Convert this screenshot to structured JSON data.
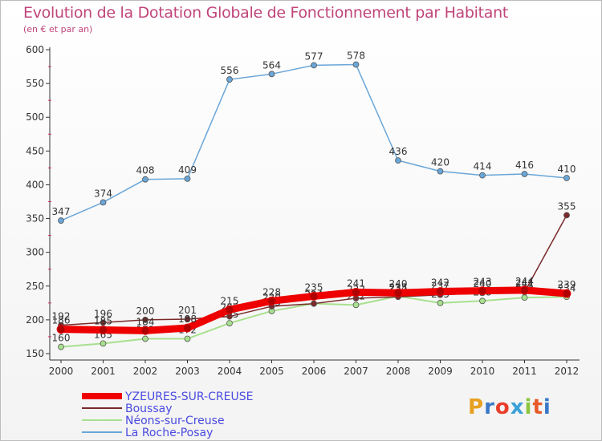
{
  "title": "Evolution de la Dotation Globale de Fonctionnement par Habitant",
  "subtitle": "(en € et par an)",
  "logo": "Proxiti",
  "chart_data": {
    "type": "line",
    "x": [
      "2000",
      "2001",
      "2002",
      "2003",
      "2004",
      "2005",
      "2006",
      "2007",
      "2008",
      "2009",
      "2010",
      "2011",
      "2012"
    ],
    "ylim": [
      150,
      600
    ],
    "yticks": [
      150,
      200,
      250,
      300,
      350,
      400,
      450,
      500,
      550,
      600
    ],
    "grid": false,
    "legend": "bottom-left",
    "series": [
      {
        "name": "La Roche-Posay",
        "color": "#6aa6d8",
        "width": 1.5,
        "values": [
          347,
          374,
          408,
          409,
          556,
          564,
          577,
          578,
          436,
          420,
          414,
          416,
          410
        ]
      },
      {
        "name": "Néons-sur-Creuse",
        "color": "#a8e08e",
        "width": 2,
        "values": [
          160,
          165,
          172,
          172,
          195,
          213,
          224,
          222,
          235,
          225,
          228,
          233,
          234
        ]
      },
      {
        "name": "Boussay",
        "color": "#7a2a2a",
        "width": 1.5,
        "values": [
          192,
          196,
          200,
          201,
          205,
          220,
          224,
          232,
          234,
          237,
          240,
          241,
          355
        ]
      },
      {
        "name": "YZEURES-SUR-CREUSE",
        "color": "#ee0000",
        "width": 9,
        "values": [
          186,
          185,
          184,
          188,
          215,
          228,
          235,
          241,
          240,
          242,
          243,
          244,
          239
        ]
      }
    ]
  }
}
